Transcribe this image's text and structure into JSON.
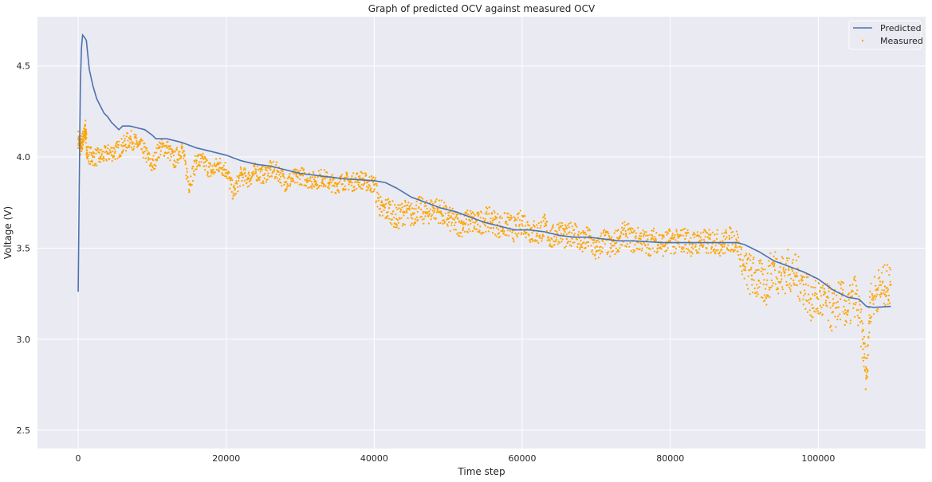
{
  "chart_data": {
    "type": "line",
    "title": "Graph of predicted OCV against measured OCV",
    "xlabel": "Time step",
    "ylabel": "Voltage (V)",
    "xlim": [
      -5500,
      114500
    ],
    "ylim": [
      2.4,
      4.77
    ],
    "xticks": [
      0,
      20000,
      40000,
      60000,
      80000,
      100000
    ],
    "xtick_labels": [
      "0",
      "20000",
      "40000",
      "60000",
      "80000",
      "100000"
    ],
    "yticks": [
      2.5,
      3.0,
      3.5,
      4.0,
      4.5
    ],
    "ytick_labels": [
      "2.5",
      "3.0",
      "3.5",
      "4.0",
      "4.5"
    ],
    "grid": true,
    "legend_position": "top-right",
    "colors": {
      "background": "#eaeaf2",
      "grid": "#ffffff",
      "predicted": "#4c72b0",
      "measured": "#ffa500"
    },
    "series": [
      {
        "name": "Predicted",
        "kind": "line",
        "points": [
          [
            0,
            3.26
          ],
          [
            150,
            3.9
          ],
          [
            300,
            4.4
          ],
          [
            450,
            4.6
          ],
          [
            600,
            4.67
          ],
          [
            800,
            4.66
          ],
          [
            1100,
            4.64
          ],
          [
            1500,
            4.48
          ],
          [
            2000,
            4.39
          ],
          [
            2500,
            4.32
          ],
          [
            3000,
            4.28
          ],
          [
            3500,
            4.24
          ],
          [
            4000,
            4.22
          ],
          [
            4500,
            4.19
          ],
          [
            5000,
            4.17
          ],
          [
            5500,
            4.15
          ],
          [
            6000,
            4.17
          ],
          [
            7000,
            4.17
          ],
          [
            8000,
            4.16
          ],
          [
            9000,
            4.15
          ],
          [
            10000,
            4.12
          ],
          [
            10500,
            4.1
          ],
          [
            12000,
            4.1
          ],
          [
            14000,
            4.08
          ],
          [
            16000,
            4.05
          ],
          [
            18000,
            4.03
          ],
          [
            20000,
            4.01
          ],
          [
            22000,
            3.98
          ],
          [
            24000,
            3.96
          ],
          [
            26000,
            3.95
          ],
          [
            28000,
            3.93
          ],
          [
            30000,
            3.91
          ],
          [
            32000,
            3.9
          ],
          [
            34000,
            3.89
          ],
          [
            36000,
            3.88
          ],
          [
            38000,
            3.875
          ],
          [
            40000,
            3.87
          ],
          [
            41500,
            3.86
          ],
          [
            43000,
            3.83
          ],
          [
            45000,
            3.78
          ],
          [
            47000,
            3.75
          ],
          [
            49000,
            3.72
          ],
          [
            51000,
            3.7
          ],
          [
            53000,
            3.67
          ],
          [
            55000,
            3.64
          ],
          [
            57000,
            3.62
          ],
          [
            59000,
            3.6
          ],
          [
            61000,
            3.6
          ],
          [
            63000,
            3.59
          ],
          [
            65000,
            3.57
          ],
          [
            67000,
            3.56
          ],
          [
            69000,
            3.56
          ],
          [
            71000,
            3.55
          ],
          [
            73000,
            3.54
          ],
          [
            75000,
            3.54
          ],
          [
            77000,
            3.535
          ],
          [
            79000,
            3.53
          ],
          [
            81000,
            3.53
          ],
          [
            83000,
            3.53
          ],
          [
            85000,
            3.53
          ],
          [
            87000,
            3.53
          ],
          [
            89000,
            3.53
          ],
          [
            90000,
            3.52
          ],
          [
            92000,
            3.48
          ],
          [
            94000,
            3.43
          ],
          [
            96000,
            3.4
          ],
          [
            98000,
            3.37
          ],
          [
            100000,
            3.33
          ],
          [
            102000,
            3.27
          ],
          [
            104000,
            3.23
          ],
          [
            105500,
            3.22
          ],
          [
            106500,
            3.18
          ],
          [
            107500,
            3.175
          ],
          [
            109000,
            3.178
          ],
          [
            109800,
            3.18
          ]
        ]
      },
      {
        "name": "Measured",
        "kind": "scatter",
        "points": [
          [
            0,
            4.1
          ],
          [
            300,
            4.05
          ],
          [
            500,
            4.08
          ],
          [
            800,
            4.12
          ],
          [
            1000,
            4.15
          ],
          [
            1200,
            4.02
          ],
          [
            2000,
            4.0
          ],
          [
            3000,
            4.0
          ],
          [
            4000,
            4.02
          ],
          [
            5000,
            4.03
          ],
          [
            6000,
            4.06
          ],
          [
            7000,
            4.1
          ],
          [
            8000,
            4.07
          ],
          [
            9000,
            4.03
          ],
          [
            10000,
            3.95
          ],
          [
            11000,
            4.05
          ],
          [
            12000,
            4.05
          ],
          [
            13000,
            3.98
          ],
          [
            14000,
            4.05
          ],
          [
            15000,
            3.85
          ],
          [
            16000,
            3.98
          ],
          [
            17000,
            3.97
          ],
          [
            18000,
            3.92
          ],
          [
            19000,
            3.96
          ],
          [
            20000,
            3.93
          ],
          [
            21000,
            3.8
          ],
          [
            22000,
            3.9
          ],
          [
            23000,
            3.88
          ],
          [
            24000,
            3.92
          ],
          [
            25000,
            3.9
          ],
          [
            26000,
            3.93
          ],
          [
            27000,
            3.92
          ],
          [
            28000,
            3.86
          ],
          [
            29000,
            3.88
          ],
          [
            30000,
            3.9
          ],
          [
            31000,
            3.88
          ],
          [
            32000,
            3.87
          ],
          [
            33000,
            3.89
          ],
          [
            34000,
            3.86
          ],
          [
            35000,
            3.85
          ],
          [
            36000,
            3.87
          ],
          [
            37000,
            3.86
          ],
          [
            38000,
            3.88
          ],
          [
            39000,
            3.86
          ],
          [
            40000,
            3.85
          ],
          [
            41000,
            3.7
          ],
          [
            42000,
            3.72
          ],
          [
            43000,
            3.66
          ],
          [
            44000,
            3.7
          ],
          [
            45000,
            3.68
          ],
          [
            46000,
            3.72
          ],
          [
            47000,
            3.69
          ],
          [
            48000,
            3.72
          ],
          [
            49000,
            3.7
          ],
          [
            50000,
            3.66
          ],
          [
            51000,
            3.64
          ],
          [
            52000,
            3.63
          ],
          [
            53000,
            3.65
          ],
          [
            54000,
            3.63
          ],
          [
            55000,
            3.66
          ],
          [
            56000,
            3.65
          ],
          [
            57000,
            3.62
          ],
          [
            58000,
            3.63
          ],
          [
            59000,
            3.6
          ],
          [
            60000,
            3.65
          ],
          [
            61000,
            3.6
          ],
          [
            62000,
            3.58
          ],
          [
            63000,
            3.62
          ],
          [
            64000,
            3.55
          ],
          [
            65000,
            3.6
          ],
          [
            66000,
            3.55
          ],
          [
            67000,
            3.6
          ],
          [
            68000,
            3.52
          ],
          [
            69000,
            3.56
          ],
          [
            70000,
            3.48
          ],
          [
            71000,
            3.55
          ],
          [
            72000,
            3.5
          ],
          [
            73000,
            3.55
          ],
          [
            74000,
            3.58
          ],
          [
            75000,
            3.54
          ],
          [
            76000,
            3.55
          ],
          [
            77000,
            3.52
          ],
          [
            78000,
            3.55
          ],
          [
            79000,
            3.52
          ],
          [
            80000,
            3.54
          ],
          [
            81000,
            3.53
          ],
          [
            82000,
            3.55
          ],
          [
            83000,
            3.52
          ],
          [
            84000,
            3.54
          ],
          [
            85000,
            3.53
          ],
          [
            86000,
            3.54
          ],
          [
            87000,
            3.52
          ],
          [
            88000,
            3.55
          ],
          [
            89000,
            3.54
          ],
          [
            90000,
            3.38
          ],
          [
            91000,
            3.35
          ],
          [
            92000,
            3.32
          ],
          [
            93000,
            3.3
          ],
          [
            94000,
            3.4
          ],
          [
            95000,
            3.35
          ],
          [
            96000,
            3.38
          ],
          [
            97000,
            3.35
          ],
          [
            98000,
            3.3
          ],
          [
            99000,
            3.22
          ],
          [
            100000,
            3.22
          ],
          [
            101000,
            3.2
          ],
          [
            102000,
            3.15
          ],
          [
            103000,
            3.22
          ],
          [
            104000,
            3.15
          ],
          [
            105000,
            3.25
          ],
          [
            106000,
            3.0
          ],
          [
            106500,
            2.8
          ],
          [
            107000,
            3.2
          ],
          [
            108000,
            3.27
          ],
          [
            109000,
            3.29
          ],
          [
            109800,
            3.3
          ]
        ]
      }
    ]
  }
}
